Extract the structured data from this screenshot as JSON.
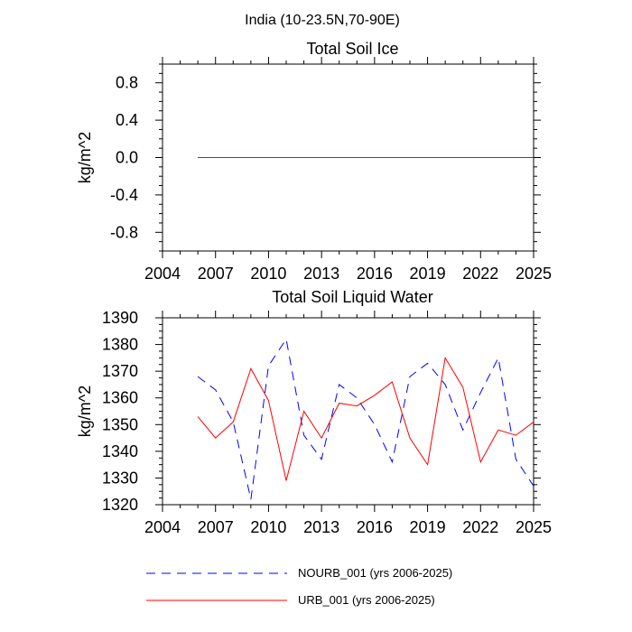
{
  "figure": {
    "suptitle": "India (10-23.5N,70-90E)"
  },
  "colors": {
    "nourb": "#0000ff",
    "urb": "#ff0000",
    "axis": "#000000"
  },
  "legend": [
    {
      "label": "NOURB_001 (yrs 2006-2025)",
      "style": "dashed",
      "color": "#0000ff"
    },
    {
      "label": "URB_001 (yrs 2006-2025)",
      "style": "solid",
      "color": "#ff0000"
    }
  ],
  "chart_data": [
    {
      "type": "line",
      "title": "Total Soil Ice",
      "xlabel": "",
      "ylabel": "kg/m^2",
      "xlim": [
        2004,
        2025
      ],
      "ylim": [
        -1.0,
        1.0
      ],
      "xticks": [
        2004,
        2007,
        2010,
        2013,
        2016,
        2019,
        2022,
        2025
      ],
      "yticks": [
        -0.8,
        -0.4,
        0.0,
        0.4,
        0.8
      ],
      "ytick_labels": [
        "-0.8",
        "-0.4",
        "0.0",
        "0.4",
        "0.8"
      ],
      "x": [
        2006,
        2007,
        2008,
        2009,
        2010,
        2011,
        2012,
        2013,
        2014,
        2015,
        2016,
        2017,
        2018,
        2019,
        2020,
        2021,
        2022,
        2023,
        2024,
        2025
      ],
      "series": [
        {
          "name": "NOURB_001 (yrs 2006-2025)",
          "values": [
            0,
            0,
            0,
            0,
            0,
            0,
            0,
            0,
            0,
            0,
            0,
            0,
            0,
            0,
            0,
            0,
            0,
            0,
            0,
            0
          ]
        },
        {
          "name": "URB_001 (yrs 2006-2025)",
          "values": [
            0,
            0,
            0,
            0,
            0,
            0,
            0,
            0,
            0,
            0,
            0,
            0,
            0,
            0,
            0,
            0,
            0,
            0,
            0,
            0
          ]
        }
      ]
    },
    {
      "type": "line",
      "title": "Total Soil Liquid Water",
      "xlabel": "",
      "ylabel": "kg/m^2",
      "xlim": [
        2004,
        2025
      ],
      "ylim": [
        1320,
        1390
      ],
      "xticks": [
        2004,
        2007,
        2010,
        2013,
        2016,
        2019,
        2022,
        2025
      ],
      "yticks": [
        1320,
        1330,
        1340,
        1350,
        1360,
        1370,
        1380,
        1390
      ],
      "ytick_labels": [
        "1320",
        "1330",
        "1340",
        "1350",
        "1360",
        "1370",
        "1380",
        "1390"
      ],
      "x": [
        2006,
        2007,
        2008,
        2009,
        2010,
        2011,
        2012,
        2013,
        2014,
        2015,
        2016,
        2017,
        2018,
        2019,
        2020,
        2021,
        2022,
        2023,
        2024,
        2025
      ],
      "series": [
        {
          "name": "NOURB_001 (yrs 2006-2025)",
          "values": [
            1368,
            1363,
            1351,
            1322,
            1372,
            1382,
            1346,
            1337,
            1365,
            1360,
            1350,
            1336,
            1368,
            1373,
            1365,
            1348,
            1362,
            1375,
            1337,
            1327
          ]
        },
        {
          "name": "URB_001 (yrs 2006-2025)",
          "values": [
            1353,
            1345,
            1351,
            1371,
            1359,
            1329,
            1355,
            1345,
            1358,
            1357,
            1361,
            1366,
            1345,
            1335,
            1375,
            1364,
            1336,
            1348,
            1346,
            1351
          ]
        }
      ]
    }
  ]
}
